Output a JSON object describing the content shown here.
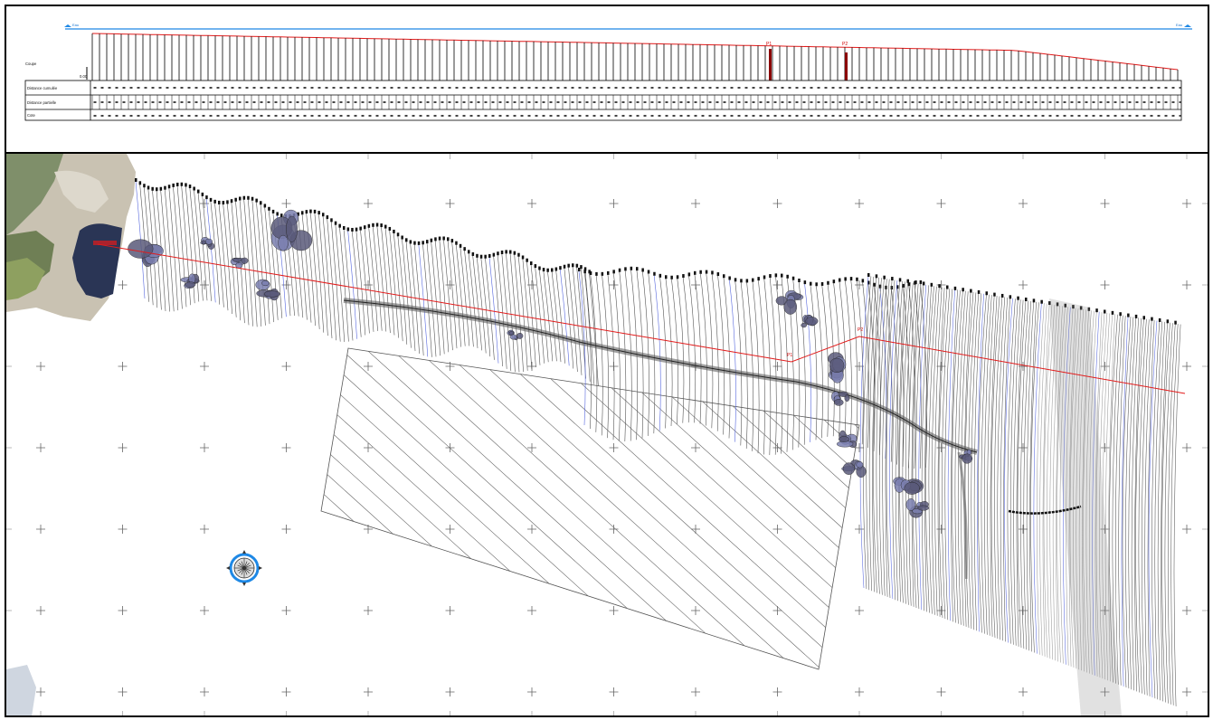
{
  "profile": {
    "row_labels": [
      "Distance cumulée",
      "Distance partielle",
      "Cote"
    ],
    "side_label": "Coupe",
    "water_level_label": "Eau",
    "pier_labels": [
      "P1",
      "P2"
    ],
    "start_label": "0.00"
  },
  "map": {
    "compass_icon": "compass-rose-icon",
    "hatched_area_icon": "hatched-zone-icon"
  },
  "colors": {
    "frame": "#000000",
    "profile_line": "#e21b1b",
    "water_line": "#1e88e5",
    "contour": "#444444",
    "contour_blue": "#5566dd",
    "rock": "#5a5a7a"
  }
}
